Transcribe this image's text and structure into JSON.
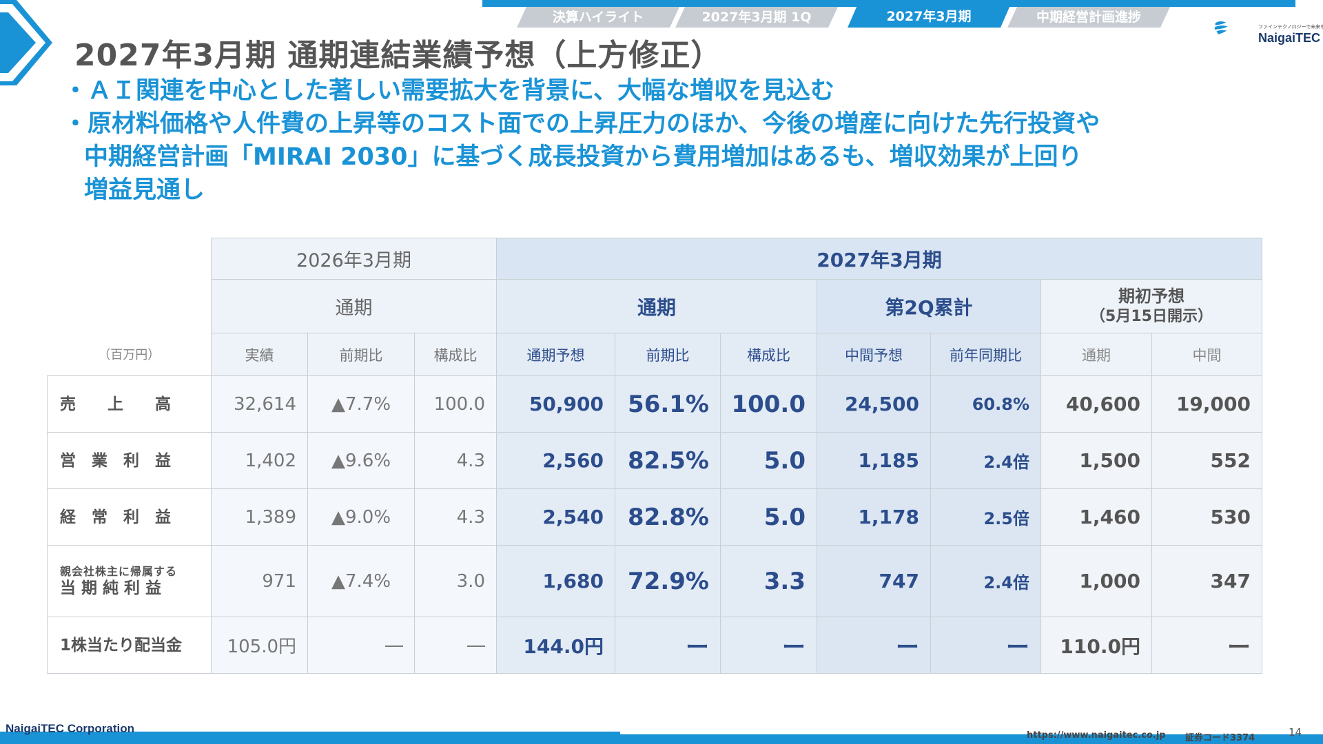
{
  "tabs": [
    {
      "label": "決算ハイライト",
      "active": false
    },
    {
      "label": "2027年3月期 1Q",
      "active": false
    },
    {
      "label": "2027年3月期",
      "active": true
    },
    {
      "label": "中期経営計画進捗",
      "active": false
    }
  ],
  "logo": {
    "tagline": "ファインテクノロジーで未来を拓く",
    "name": "NaigaiTEC"
  },
  "title": "2027年3月期 通期連結業績予想（上方修正）",
  "bullets": [
    [
      "・ＡＩ関連を中心とした著しい需要拡大を背景に、大幅な増収を見込む"
    ],
    [
      "・原材料価格や人件費の上昇等のコスト面での上昇圧力のほか、今後の増産に向けた先行投資や",
      "中期経営計画「MIRAI 2030」に基づく成長投資から費用増加はあるも、増収効果が上回り",
      "増益見通し"
    ]
  ],
  "table": {
    "unit": "（百万円）",
    "header_2026": "2026年3月期",
    "header_2027": "2027年3月期",
    "group_2026": "通期",
    "group_2027_full": "通期",
    "group_2027_2q": "第2Q累計",
    "group_initial": "期初予想",
    "group_initial_note": "（5月15日開示）",
    "sub": {
      "actual": "実績",
      "yoy": "前期比",
      "ratio": "構成比",
      "forecast": "通期予想",
      "yoy27": "前期比",
      "ratio27": "構成比",
      "interim": "中間予想",
      "yoy_same": "前年同期比",
      "init_full": "通期",
      "init_interim": "中間"
    },
    "rows": [
      {
        "label": "売　　上　　高",
        "label_small": "",
        "actual": "32,614",
        "yoy": "▲7.7%",
        "ratio": "100.0",
        "forecast": "50,900",
        "yoy27": "56.1%",
        "ratio27": "100.0",
        "interim": "24,500",
        "yoy_same": "60.8%",
        "init_full": "40,600",
        "init_interim": "19,000"
      },
      {
        "label": "営　業　利　益",
        "label_small": "",
        "actual": "1,402",
        "yoy": "▲9.6%",
        "ratio": "4.3",
        "forecast": "2,560",
        "yoy27": "82.5%",
        "ratio27": "5.0",
        "interim": "1,185",
        "yoy_same": "2.4倍",
        "init_full": "1,500",
        "init_interim": "552"
      },
      {
        "label": "経　常　利　益",
        "label_small": "",
        "actual": "1,389",
        "yoy": "▲9.0%",
        "ratio": "4.3",
        "forecast": "2,540",
        "yoy27": "82.8%",
        "ratio27": "5.0",
        "interim": "1,178",
        "yoy_same": "2.5倍",
        "init_full": "1,460",
        "init_interim": "530"
      },
      {
        "label": "当 期 純 利 益",
        "label_small": "親会社株主に帰属する",
        "actual": "971",
        "yoy": "▲7.4%",
        "ratio": "3.0",
        "forecast": "1,680",
        "yoy27": "72.9%",
        "ratio27": "3.3",
        "interim": "747",
        "yoy_same": "2.4倍",
        "init_full": "1,000",
        "init_interim": "347"
      },
      {
        "label": "1株当たり配当金",
        "label_small": "",
        "actual": "105.0円",
        "yoy": "―",
        "ratio": "―",
        "forecast": "144.0円",
        "yoy27": "ー",
        "ratio27": "ー",
        "interim": "ー",
        "yoy_same": "ー",
        "init_full": "110.0円",
        "init_interim": "ー"
      }
    ]
  },
  "footer": {
    "corp": "NaigaiTEC Corporation",
    "url": "https://www.naigaitec.co.jp",
    "code": "証券コード3374",
    "page": "14"
  },
  "colors": {
    "accent": "#1a93d6",
    "navy": "#2c4d8c",
    "tab_inactive": "#c7ccd2"
  }
}
